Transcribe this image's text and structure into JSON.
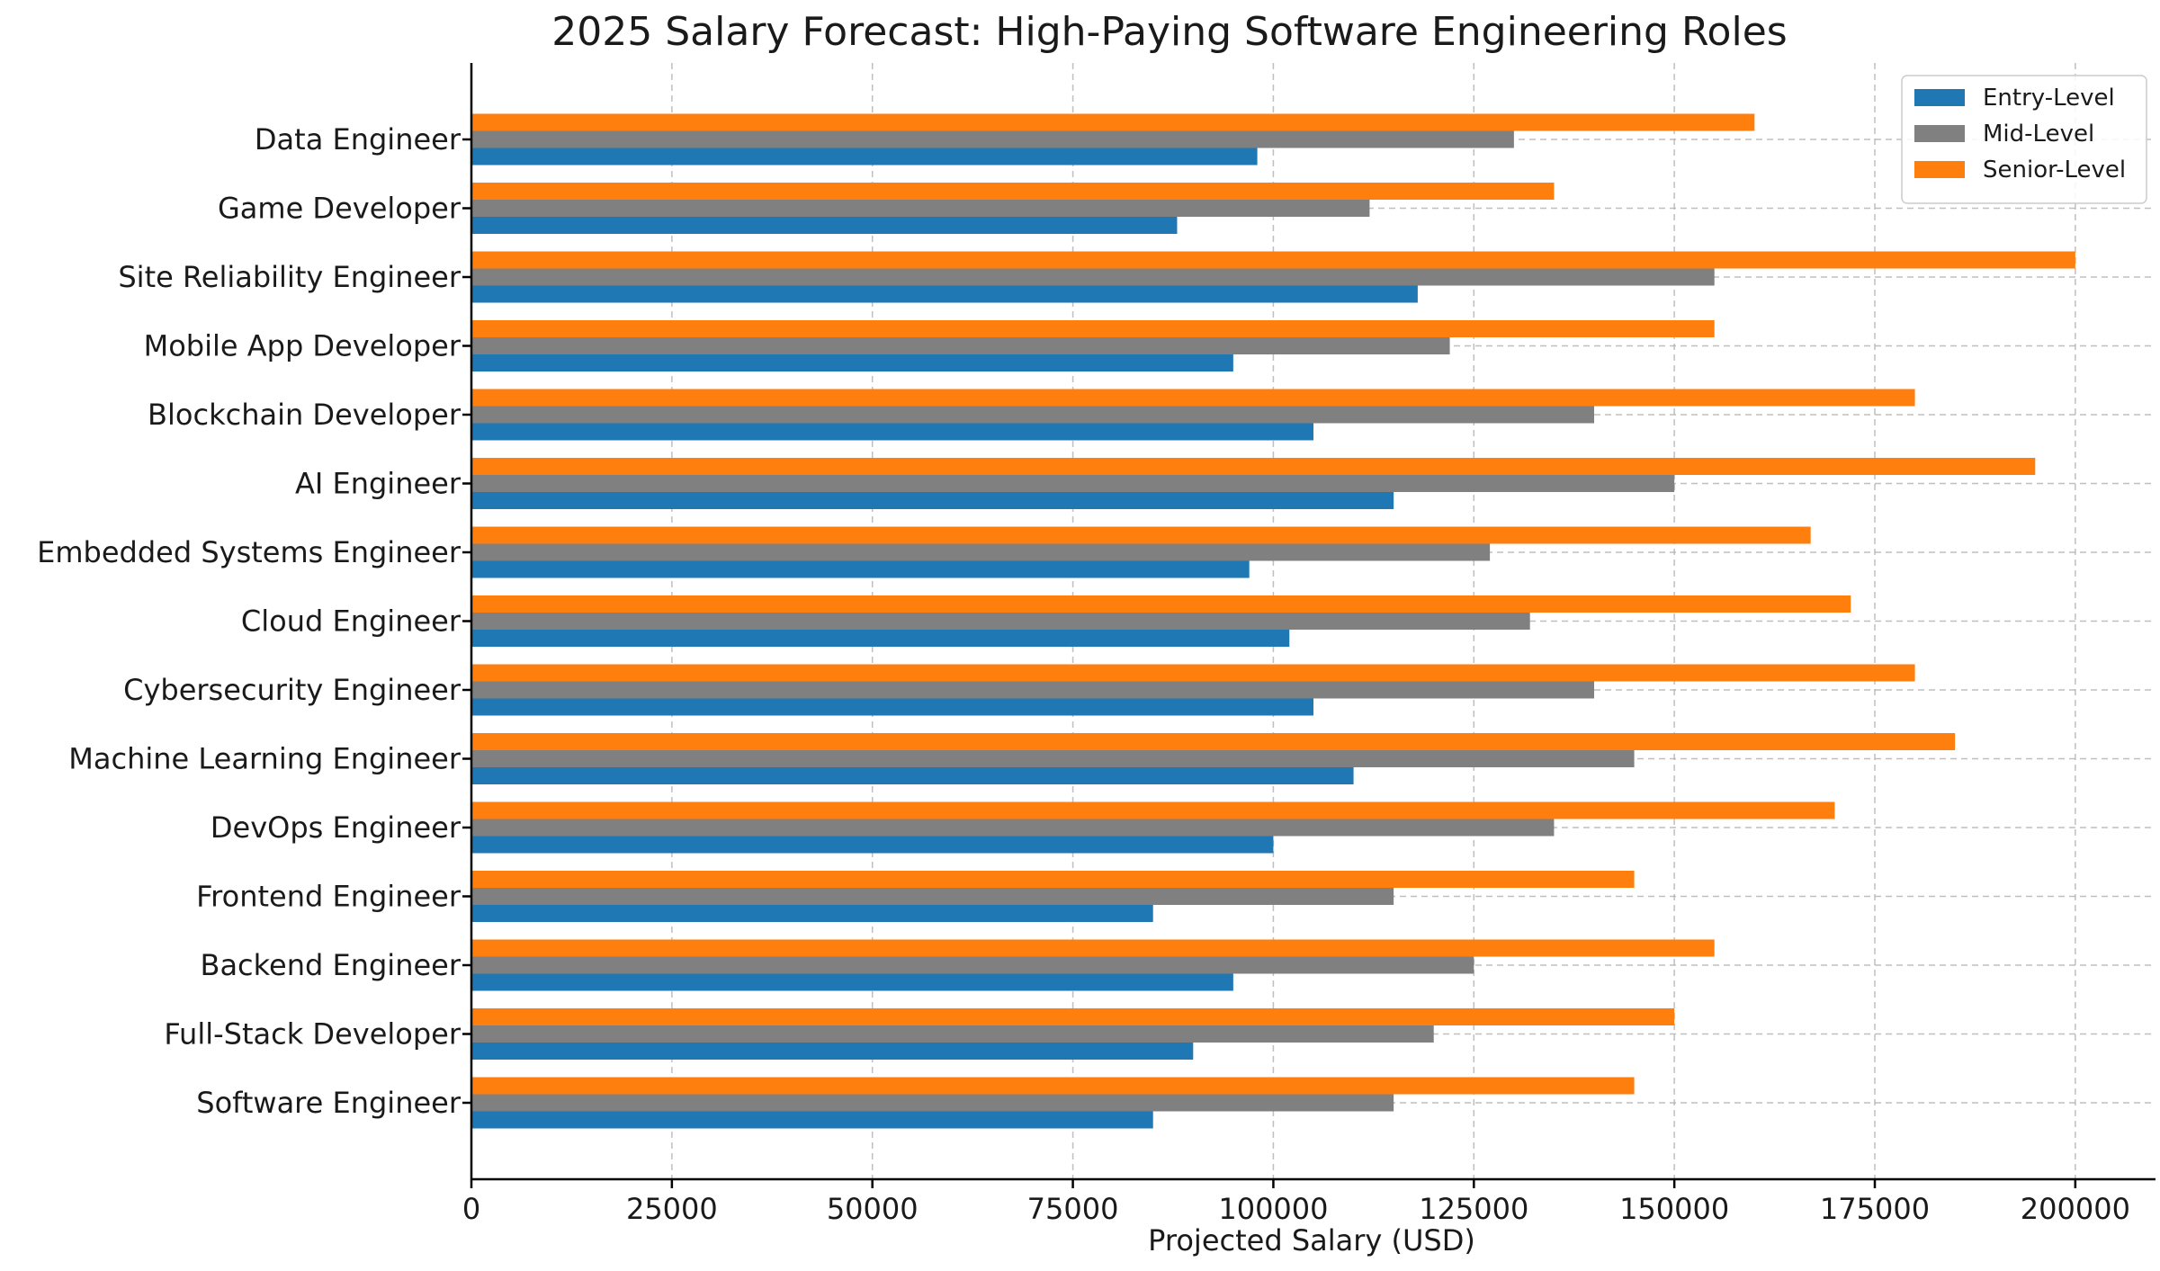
{
  "chart_data": {
    "type": "bar",
    "orientation": "horizontal",
    "title": "2025 Salary Forecast: High-Paying Software Engineering Roles",
    "xlabel": "Projected Salary (USD)",
    "ylabel": "",
    "xlim": [
      0,
      210000
    ],
    "xticks": [
      0,
      25000,
      50000,
      75000,
      100000,
      125000,
      150000,
      175000,
      200000
    ],
    "xtick_labels": [
      "0",
      "25000",
      "50000",
      "75000",
      "100000",
      "125000",
      "150000",
      "175000",
      "200000"
    ],
    "grid": true,
    "legend_position": "top-right",
    "categories": [
      "Software Engineer",
      "Full-Stack Developer",
      "Backend Engineer",
      "Frontend Engineer",
      "DevOps Engineer",
      "Machine Learning Engineer",
      "Cybersecurity Engineer",
      "Cloud Engineer",
      "Embedded Systems Engineer",
      "AI Engineer",
      "Blockchain Developer",
      "Mobile App Developer",
      "Site Reliability Engineer",
      "Game Developer",
      "Data Engineer"
    ],
    "series": [
      {
        "name": "Entry-Level",
        "color": "#1f77b4",
        "values": [
          85000,
          90000,
          95000,
          85000,
          100000,
          110000,
          105000,
          102000,
          97000,
          115000,
          105000,
          95000,
          118000,
          88000,
          98000
        ]
      },
      {
        "name": "Mid-Level",
        "color": "#808080",
        "values": [
          115000,
          120000,
          125000,
          115000,
          135000,
          145000,
          140000,
          132000,
          127000,
          150000,
          140000,
          122000,
          155000,
          112000,
          130000
        ]
      },
      {
        "name": "Senior-Level",
        "color": "#ff7f0e",
        "values": [
          145000,
          150000,
          155000,
          145000,
          170000,
          185000,
          180000,
          172000,
          167000,
          195000,
          180000,
          155000,
          200000,
          135000,
          160000
        ]
      }
    ]
  }
}
